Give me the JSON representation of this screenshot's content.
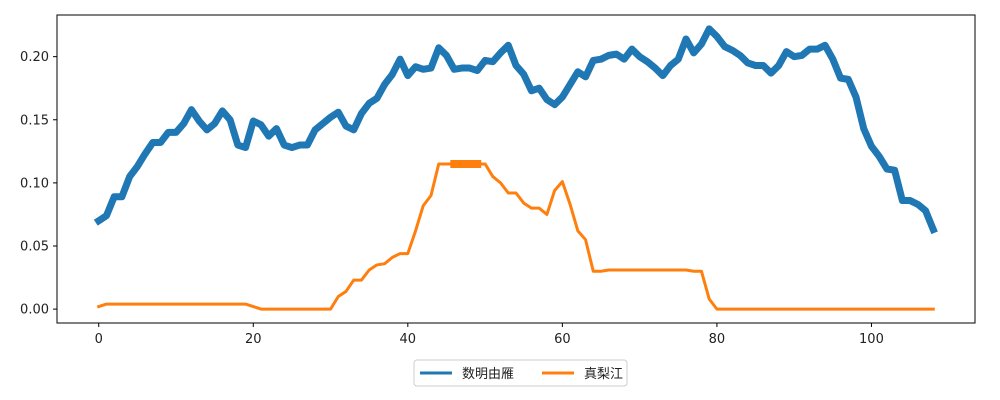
{
  "chart_data": {
    "type": "line",
    "title": "",
    "xlabel": "",
    "ylabel": "",
    "xlim": [
      -5.4,
      113.4
    ],
    "ylim": [
      -0.011,
      0.233
    ],
    "xticks": [
      0,
      20,
      40,
      60,
      80,
      100
    ],
    "yticks": [
      0.0,
      0.05,
      0.1,
      0.15,
      0.2
    ],
    "xtick_labels": [
      "0",
      "20",
      "40",
      "60",
      "80",
      "100"
    ],
    "ytick_labels": [
      "0.00",
      "0.05",
      "0.10",
      "0.15",
      "0.20"
    ],
    "grid": false,
    "legend_position": "bottom-center",
    "series": [
      {
        "name": "数明由雁",
        "color": "#1f77b4",
        "x": [
          0,
          1,
          2,
          3,
          4,
          5,
          6,
          7,
          8,
          9,
          10,
          11,
          12,
          13,
          14,
          15,
          16,
          17,
          18,
          19,
          20,
          21,
          22,
          23,
          24,
          25,
          26,
          27,
          28,
          29,
          30,
          31,
          32,
          33,
          34,
          35,
          36,
          37,
          38,
          39,
          40,
          41,
          42,
          43,
          44,
          45,
          46,
          47,
          48,
          49,
          50,
          51,
          52,
          53,
          54,
          55,
          56,
          57,
          58,
          59,
          60,
          61,
          62,
          63,
          64,
          65,
          66,
          67,
          68,
          69,
          70,
          71,
          72,
          73,
          74,
          75,
          76,
          77,
          78,
          79,
          80,
          81,
          82,
          83,
          84,
          85,
          86,
          87,
          88,
          89,
          90,
          91,
          92,
          93,
          94,
          95,
          96,
          97,
          98,
          99,
          100,
          101,
          102,
          103,
          104,
          105,
          106,
          107,
          108
        ],
        "y": [
          0.07,
          0.074,
          0.089,
          0.089,
          0.105,
          0.113,
          0.123,
          0.132,
          0.132,
          0.14,
          0.14,
          0.147,
          0.158,
          0.149,
          0.142,
          0.147,
          0.157,
          0.15,
          0.13,
          0.128,
          0.149,
          0.146,
          0.137,
          0.143,
          0.13,
          0.128,
          0.13,
          0.13,
          0.142,
          0.147,
          0.152,
          0.156,
          0.145,
          0.142,
          0.155,
          0.163,
          0.167,
          0.178,
          0.186,
          0.198,
          0.185,
          0.192,
          0.19,
          0.191,
          0.207,
          0.201,
          0.19,
          0.191,
          0.191,
          0.189,
          0.197,
          0.196,
          0.203,
          0.209,
          0.193,
          0.186,
          0.173,
          0.175,
          0.166,
          0.162,
          0.168,
          0.178,
          0.188,
          0.184,
          0.197,
          0.198,
          0.201,
          0.202,
          0.198,
          0.206,
          0.2,
          0.196,
          0.191,
          0.185,
          0.193,
          0.198,
          0.214,
          0.203,
          0.21,
          0.222,
          0.216,
          0.208,
          0.205,
          0.201,
          0.195,
          0.193,
          0.193,
          0.187,
          0.193,
          0.204,
          0.2,
          0.201,
          0.206,
          0.206,
          0.209,
          0.198,
          0.183,
          0.182,
          0.168,
          0.143,
          0.129,
          0.121,
          0.111,
          0.11,
          0.086,
          0.086,
          0.083,
          0.078,
          0.063
        ],
        "line_width": 7
      },
      {
        "name": "真梨江",
        "color": "#ff7f0e",
        "x": [
          0,
          1,
          2,
          3,
          4,
          5,
          6,
          7,
          8,
          9,
          10,
          11,
          12,
          13,
          14,
          15,
          16,
          17,
          18,
          19,
          20,
          21,
          22,
          23,
          24,
          25,
          26,
          27,
          28,
          29,
          30,
          31,
          32,
          33,
          34,
          35,
          36,
          37,
          38,
          39,
          40,
          41,
          42,
          43,
          44,
          45,
          46,
          47,
          48,
          49,
          50,
          51,
          52,
          53,
          54,
          55,
          56,
          57,
          58,
          59,
          60,
          61,
          62,
          63,
          64,
          65,
          66,
          67,
          68,
          69,
          70,
          71,
          72,
          73,
          74,
          75,
          76,
          77,
          78,
          79,
          80,
          81,
          82,
          83,
          84,
          85,
          86,
          87,
          88,
          89,
          90,
          91,
          92,
          93,
          94,
          95,
          96,
          97,
          98,
          99,
          100,
          101,
          102,
          103,
          104,
          105,
          106,
          107,
          108
        ],
        "y": [
          0.002,
          0.004,
          0.004,
          0.004,
          0.004,
          0.004,
          0.004,
          0.004,
          0.004,
          0.004,
          0.004,
          0.004,
          0.004,
          0.004,
          0.004,
          0.004,
          0.004,
          0.004,
          0.004,
          0.004,
          0.002,
          0.0,
          0.0,
          0.0,
          0.0,
          0.0,
          0.0,
          0.0,
          0.0,
          0.0,
          0.0,
          0.01,
          0.014,
          0.023,
          0.023,
          0.031,
          0.035,
          0.036,
          0.041,
          0.044,
          0.044,
          0.062,
          0.082,
          0.09,
          0.115,
          0.115,
          0.115,
          0.115,
          0.115,
          0.115,
          0.115,
          0.105,
          0.1,
          0.092,
          0.092,
          0.084,
          0.08,
          0.08,
          0.075,
          0.094,
          0.101,
          0.083,
          0.062,
          0.055,
          0.03,
          0.03,
          0.031,
          0.031,
          0.031,
          0.031,
          0.031,
          0.031,
          0.031,
          0.031,
          0.031,
          0.031,
          0.031,
          0.03,
          0.03,
          0.008,
          0.0,
          0.0,
          0.0,
          0.0,
          0.0,
          0.0,
          0.0,
          0.0,
          0.0,
          0.0,
          0.0,
          0.0,
          0.0,
          0.0,
          0.0,
          0.0,
          0.0,
          0.0,
          0.0,
          0.0,
          0.0,
          0.0,
          0.0,
          0.0,
          0.0,
          0.0,
          0.0,
          0.0,
          0.0
        ],
        "line_width": 3,
        "highlight_segment": {
          "x": [
            45.5,
            49.5
          ],
          "y": 0.115,
          "line_width": 8
        }
      }
    ]
  }
}
